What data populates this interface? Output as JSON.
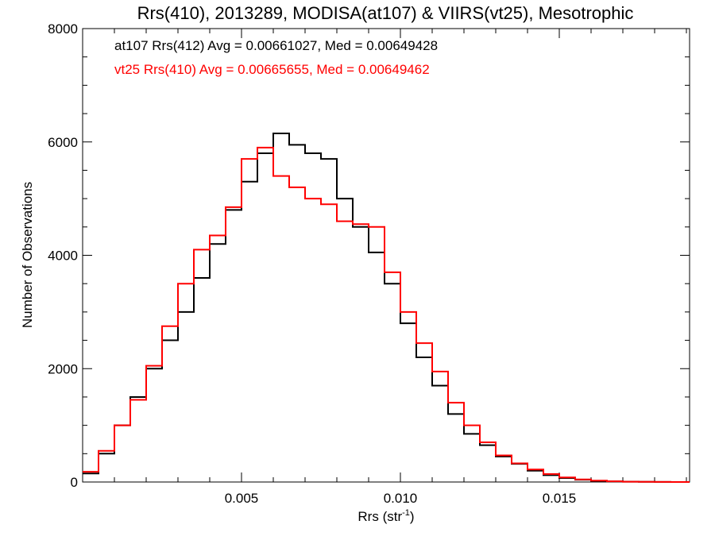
{
  "chart_data": {
    "type": "line",
    "title": "Rrs(410), 2013289, MODISA(at107) & VIIRS(vt25), Mesotrophic",
    "xlabel": "Rrs (str",
    "xlabel_sup": "-1",
    "xlabel_suffix": ")",
    "ylabel": "Number of Observations",
    "xlim": [
      0.0,
      0.0191
    ],
    "ylim": [
      0,
      8000
    ],
    "x_ticks": [
      0.005,
      0.01,
      0.015
    ],
    "x_tick_labels": [
      "0.005",
      "0.010",
      "0.015"
    ],
    "y_ticks": [
      0,
      2000,
      4000,
      6000,
      8000
    ],
    "y_tick_labels": [
      "0",
      "2000",
      "4000",
      "6000",
      "8000"
    ],
    "grid": false,
    "legend_placement": "top-left",
    "series": [
      {
        "name": "at107 Rrs(412) Avg = 0.00661027, Med = 0.00649428",
        "color": "#000000",
        "step": true,
        "x": [
          0.0,
          0.0005,
          0.001,
          0.0015,
          0.002,
          0.0025,
          0.003,
          0.0035,
          0.004,
          0.0045,
          0.005,
          0.0055,
          0.006,
          0.0065,
          0.007,
          0.0075,
          0.008,
          0.0085,
          0.009,
          0.0095,
          0.01,
          0.0105,
          0.011,
          0.0115,
          0.012,
          0.0125,
          0.013,
          0.0135,
          0.014,
          0.0145,
          0.015,
          0.0155,
          0.016,
          0.0165,
          0.017,
          0.0175,
          0.018,
          0.0185,
          0.019
        ],
        "y": [
          150,
          500,
          1000,
          1500,
          2000,
          2500,
          3000,
          3600,
          4200,
          4800,
          5300,
          5800,
          6150,
          5950,
          5800,
          5700,
          5000,
          4500,
          4050,
          3500,
          2800,
          2200,
          1700,
          1200,
          850,
          650,
          450,
          320,
          200,
          120,
          70,
          40,
          20,
          10,
          5,
          3,
          1,
          0,
          0
        ]
      },
      {
        "name": "vt25 Rrs(410) Avg = 0.00665655, Med = 0.00649462",
        "color": "#ff0000",
        "step": true,
        "x": [
          0.0,
          0.0005,
          0.001,
          0.0015,
          0.002,
          0.0025,
          0.003,
          0.0035,
          0.004,
          0.0045,
          0.005,
          0.0055,
          0.006,
          0.0065,
          0.007,
          0.0075,
          0.008,
          0.0085,
          0.009,
          0.0095,
          0.01,
          0.0105,
          0.011,
          0.0115,
          0.012,
          0.0125,
          0.013,
          0.0135,
          0.014,
          0.0145,
          0.015,
          0.0155,
          0.016,
          0.0165,
          0.017,
          0.0175,
          0.018,
          0.0185,
          0.019
        ],
        "y": [
          180,
          550,
          1000,
          1450,
          2050,
          2750,
          3500,
          4100,
          4350,
          4850,
          5700,
          5900,
          5400,
          5200,
          5000,
          4900,
          4600,
          4550,
          4500,
          3700,
          3000,
          2450,
          1950,
          1400,
          1000,
          700,
          470,
          330,
          220,
          140,
          80,
          45,
          25,
          12,
          6,
          3,
          1,
          0,
          0
        ]
      }
    ]
  }
}
